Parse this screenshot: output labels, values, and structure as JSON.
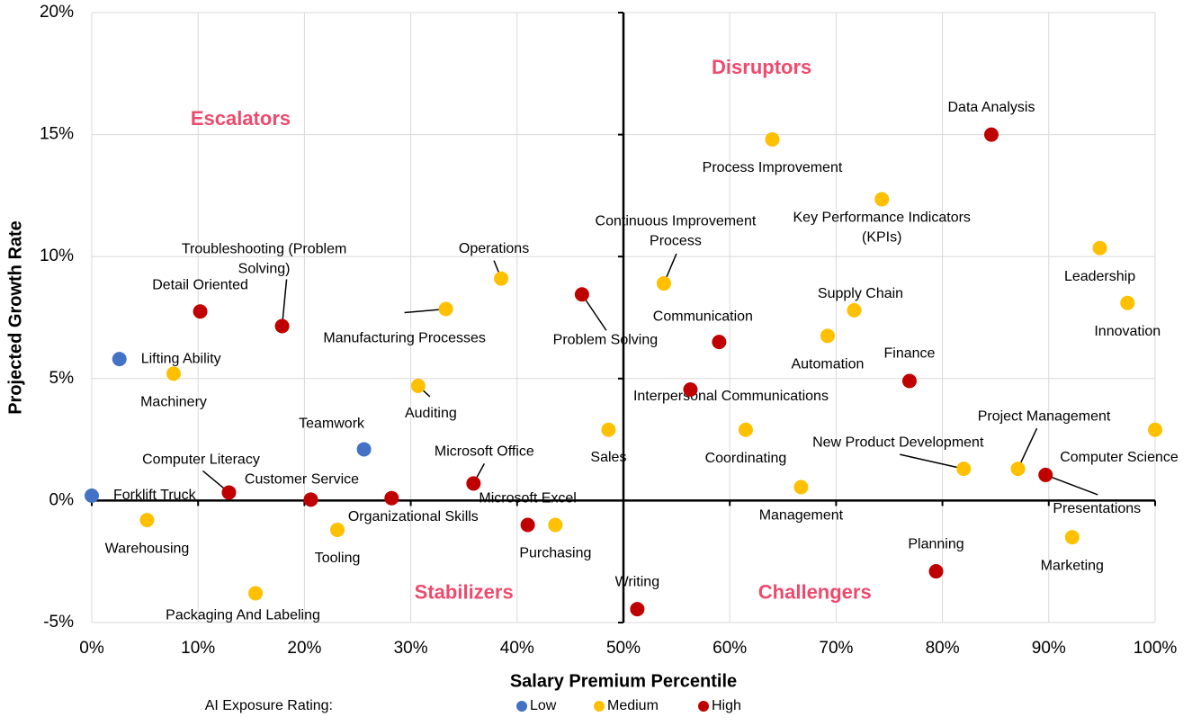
{
  "chart_data": {
    "type": "scatter",
    "x_label": "Salary Premium Percentile",
    "y_label": "Projected Growth Rate",
    "legend_title": "AI Exposure Rating:",
    "annotations": [
      {
        "text": "Escalators",
        "x": 14,
        "y": 15.6
      },
      {
        "text": "Disruptors",
        "x": 63,
        "y": 17.7
      },
      {
        "text": "Stabilizers",
        "x": 35,
        "y": -3.8
      },
      {
        "text": "Challengers",
        "x": 68,
        "y": -3.8
      }
    ],
    "annotation_color": "#ee4a6d",
    "xlim": [
      0,
      100
    ],
    "ylim": [
      -5,
      20
    ],
    "xticks": [
      {
        "value": 0,
        "label": "0%"
      },
      {
        "value": 10,
        "label": "10%"
      },
      {
        "value": 20,
        "label": "20%"
      },
      {
        "value": 30,
        "label": "30%"
      },
      {
        "value": 40,
        "label": "40%"
      },
      {
        "value": 50,
        "label": "50%"
      },
      {
        "value": 60,
        "label": "60%"
      },
      {
        "value": 70,
        "label": "70%"
      },
      {
        "value": 80,
        "label": "80%"
      },
      {
        "value": 90,
        "label": "90%"
      },
      {
        "value": 100,
        "label": "100%"
      }
    ],
    "yticks": [
      {
        "value": -5,
        "label": "-5%"
      },
      {
        "value": 0,
        "label": "0%"
      },
      {
        "value": 5,
        "label": "5%"
      },
      {
        "value": 10,
        "label": "10%"
      },
      {
        "value": 15,
        "label": "15%"
      },
      {
        "value": 20,
        "label": "20%"
      }
    ],
    "grid": true,
    "crosshair_x": 50,
    "legend_position": "bottom",
    "series": [
      {
        "name": "Low",
        "color": "#4472c4",
        "x": [
          0,
          2.6,
          25.6
        ],
        "values": [
          0.2,
          5.8,
          2.1
        ],
        "labels": [
          "Forklift Truck",
          "Lifting Ability",
          "Teamwork"
        ]
      },
      {
        "name": "Medium",
        "color": "#ffc000",
        "x": [
          7.7,
          5.2,
          15.4,
          23.1,
          30.7,
          33.3,
          38.5,
          43.6,
          48.6,
          53.8,
          64.0,
          74.3,
          61.5,
          66.7,
          69.2,
          71.7,
          82.0,
          87.1,
          92.2,
          94.8,
          97.4,
          100
        ],
        "values": [
          5.2,
          -0.8,
          -3.8,
          -1.2,
          4.7,
          7.85,
          9.1,
          -1.0,
          2.9,
          8.9,
          14.8,
          12.35,
          2.9,
          0.55,
          6.75,
          7.8,
          1.3,
          1.3,
          -1.5,
          10.35,
          8.1,
          2.9
        ],
        "labels": [
          "Machinery",
          "Warehousing",
          "Packaging And Labeling",
          "Tooling",
          "Auditing",
          "Manufacturing Processes",
          "Operations",
          "Purchasing",
          "Sales",
          [
            "Continuous Improvement",
            "Process"
          ],
          "Process Improvement",
          [
            "Key Performance Indicators",
            "(KPIs)"
          ],
          "Coordinating",
          "Management",
          "Automation",
          "Supply Chain",
          "New Product Development",
          "Project Management",
          "Marketing",
          "Leadership",
          "Innovation",
          "Computer Science"
        ]
      },
      {
        "name": "High",
        "color": "#c00000",
        "x": [
          10.2,
          12.9,
          17.9,
          20.6,
          28.2,
          35.9,
          41.0,
          46.1,
          51.3,
          56.3,
          59.0,
          76.9,
          79.4,
          84.6,
          89.7
        ],
        "values": [
          7.75,
          0.33,
          7.15,
          0.04,
          0.1,
          0.7,
          -1.0,
          8.45,
          -4.45,
          4.55,
          6.5,
          4.9,
          -2.9,
          15.0,
          1.05
        ],
        "labels": [
          "Detail Oriented",
          "Computer Literacy",
          [
            "Troubleshooting (Problem",
            "Solving)"
          ],
          "Customer Service",
          "Organizational Skills",
          "Microsoft Office",
          "Microsoft Excel",
          "Problem Solving",
          "Writing",
          "Interpersonal Communications",
          "Communication",
          "Finance",
          "Planning",
          "Data Analysis",
          "Presentations"
        ]
      }
    ]
  }
}
